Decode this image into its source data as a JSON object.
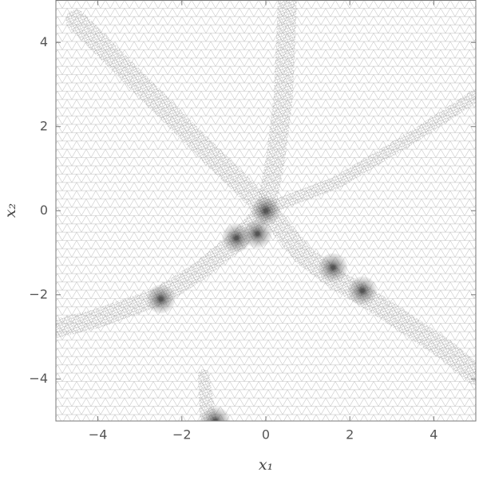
{
  "chart_data": {
    "type": "mesh",
    "xlabel": "x₁",
    "ylabel": "x₂",
    "xlim": [
      -5,
      5
    ],
    "ylim": [
      -5,
      5
    ],
    "xticks": [
      {
        "value": -4,
        "label": "−4"
      },
      {
        "value": -2,
        "label": "−2"
      },
      0,
      2,
      4
    ],
    "yticks": [
      {
        "value": -4,
        "label": "−4"
      },
      {
        "value": -2,
        "label": "−2"
      },
      0,
      2,
      4
    ],
    "color": "#555555",
    "x": [
      0,
      -0.7,
      -0.2,
      1.6,
      2.3,
      -2.5,
      -1.2
    ],
    "y": [
      0,
      -0.65,
      -0.55,
      -1.35,
      -1.9,
      -2.1,
      -5
    ]
  }
}
